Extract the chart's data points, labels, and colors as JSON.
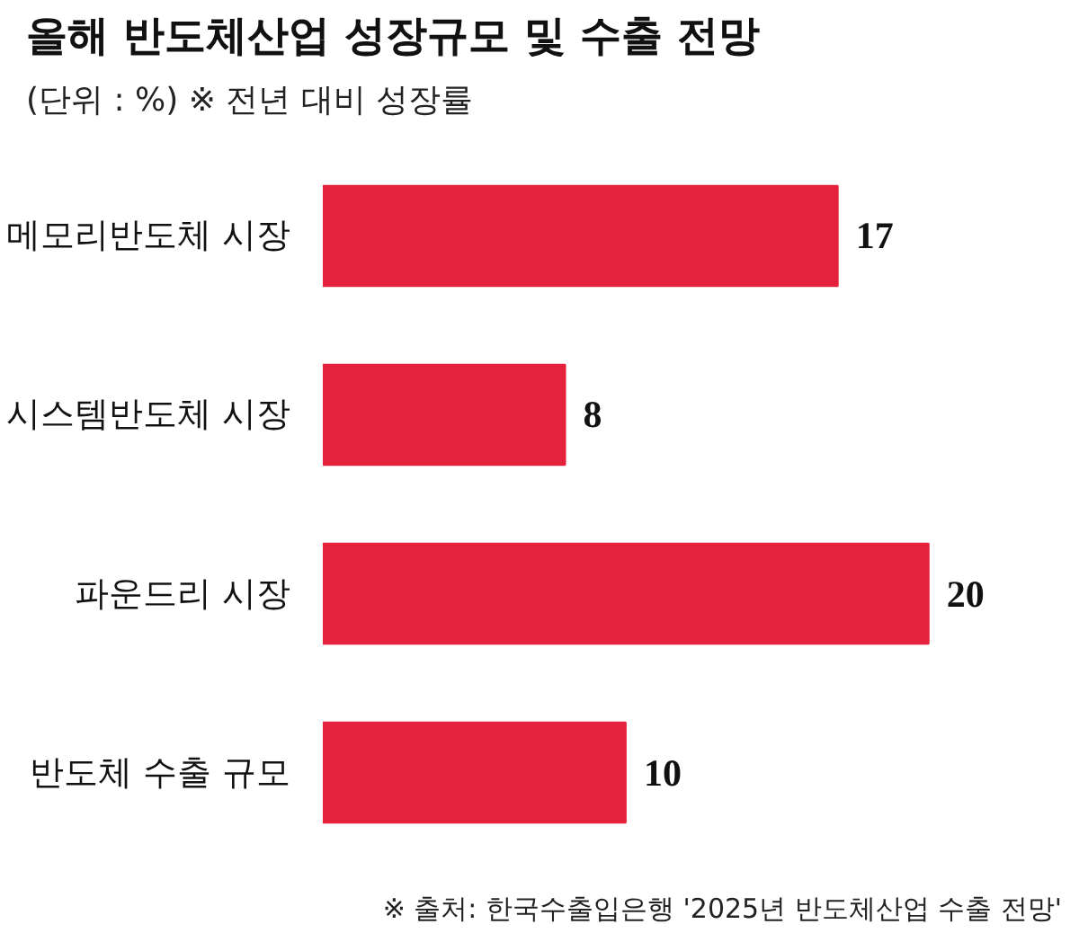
{
  "chart_data": {
    "type": "bar",
    "orientation": "horizontal",
    "title": "올해 반도체산업 성장규모 및 수출 전망",
    "subtitle": "(단위 : %) ※  전년 대비 성장률",
    "categories": [
      "메모리반도체 시장",
      "시스템반도체 시장",
      "파운드리 시장",
      "반도체 수출 규모"
    ],
    "values": [
      17,
      8,
      20,
      10
    ],
    "color": "#e5223d",
    "data_labels": true,
    "grid": false,
    "tick_labels": "y",
    "annotations": [
      "※ 출처: 한국수출입은행 '2025년 반도체산업 수출 전망'"
    ]
  }
}
